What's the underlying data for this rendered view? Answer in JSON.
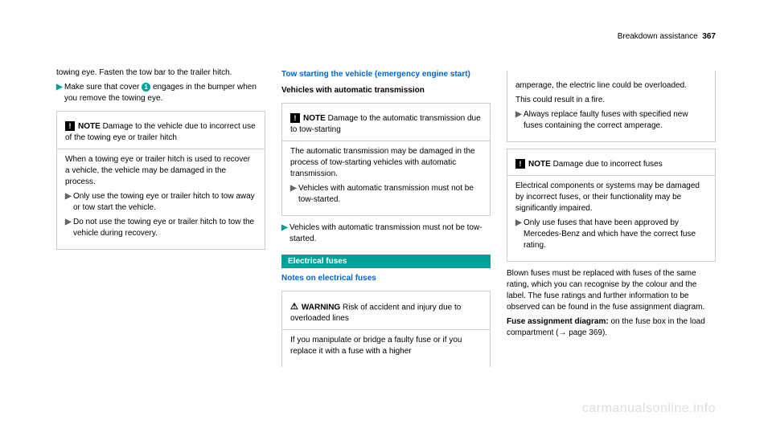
{
  "header": {
    "section": "Breakdown assistance",
    "page": "367"
  },
  "col1": {
    "intro": "towing eye. Fasten the tow bar to the trailer hitch.",
    "bullet1": "Make sure that cover",
    "bullet1_cont": "engages in the bumper when you remove the towing eye.",
    "note1_label": "NOTE",
    "note1_text": "Damage to the vehicle due to incorrect use of the towing eye or trailer hitch",
    "note1_body": "When a towing eye or trailer hitch is used to recover a vehicle, the vehicle may be damaged in the process.",
    "note1_b1": "Only use the towing eye or trailer hitch to tow away or tow start the vehicle.",
    "note1_b2": "Do not use the towing eye or trailer hitch to tow the vehicle during recovery."
  },
  "col2": {
    "heading1": "Tow starting the vehicle (emergency engine start)",
    "subheading1": "Vehicles with automatic transmission",
    "note1_label": "NOTE",
    "note1_text": "Damage to the automatic transmission due to tow-starting",
    "note1_body": "The automatic transmission may be damaged in the process of tow-starting vehicles with automatic transmission.",
    "note1_b1": "Vehicles with automatic transmission must not be tow-started.",
    "bullet1": "Vehicles with automatic transmission must not be tow-started.",
    "bar1": "Electrical fuses",
    "heading2": "Notes on electrical fuses",
    "warn_label": "WARNING",
    "warn_text": "Risk of accident and injury due to overloaded lines",
    "warn_body": "If you manipulate or bridge a faulty fuse or if you replace it with a fuse with a higher"
  },
  "col3": {
    "warn_cont": "amperage, the electric line could be overloaded.",
    "warn_cont2": "This could result in a fire.",
    "warn_b1": "Always replace faulty fuses with specified new fuses containing the correct amperage.",
    "note2_label": "NOTE",
    "note2_text": "Damage due to incorrect fuses",
    "note2_body": "Electrical components or systems may be damaged by incorrect fuses, or their functionality may be significantly impaired.",
    "note2_b1": "Only use fuses that have been approved by Mercedes-Benz and which have the correct fuse rating.",
    "para1": "Blown fuses must be replaced with fuses of the same rating, which you can recognise by the colour and the label. The fuse ratings and further information to be observed can be found in the fuse assignment diagram.",
    "para2_bold": "Fuse assignment diagram:",
    "para2_rest": " on the fuse box in the load compartment (→ page 369)."
  },
  "watermark": "carmanualsonline.info"
}
